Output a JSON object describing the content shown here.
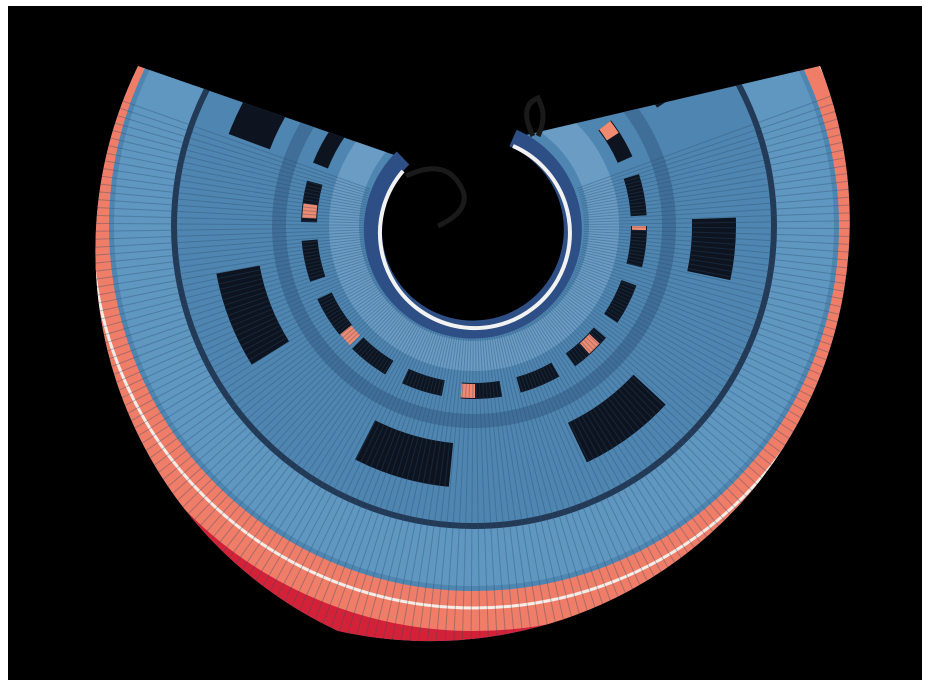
{
  "photo": {
    "subject": "pleated-skirt",
    "colors": {
      "background": "#000000",
      "frame": "#ffffff",
      "indigo_light": "#5a8fb8",
      "indigo_mid": "#3f6f99",
      "indigo_dark": "#0d1420",
      "coral": "#ef7d68",
      "pink_stripe": "#f7c6b7",
      "red_edge": "#d32238",
      "white_cord": "#f2f2f2",
      "waist_navy": "#2d4f86"
    }
  }
}
